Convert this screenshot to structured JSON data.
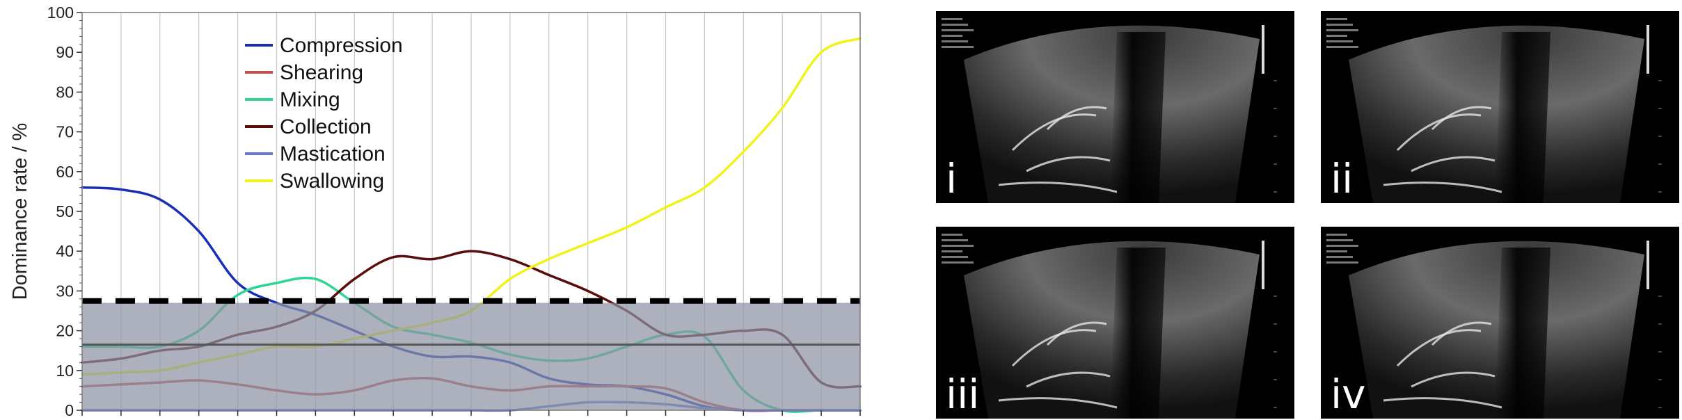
{
  "chart_data": {
    "type": "line",
    "ylabel": "Dominance rate / %",
    "xlabel": "",
    "ylim": [
      0,
      100
    ],
    "yticks": [
      0,
      10,
      20,
      30,
      40,
      50,
      60,
      70,
      80,
      90,
      100
    ],
    "grid": "vertical",
    "legend_position": "top-left",
    "threshold_line": {
      "value": 27.5,
      "style": "dashed",
      "color": "#000000"
    },
    "mean_line": {
      "value": 16.5,
      "color": "#555555"
    },
    "shaded_region": {
      "from": 0,
      "to": 27,
      "color": "#8c93a3"
    },
    "x": [
      0,
      0.05,
      0.1,
      0.15,
      0.2,
      0.25,
      0.3,
      0.35,
      0.4,
      0.45,
      0.5,
      0.55,
      0.6,
      0.65,
      0.7,
      0.75,
      0.8,
      0.85,
      0.9,
      0.95,
      1.0
    ],
    "series": [
      {
        "name": "Compression",
        "color": "#1a2fb5",
        "values": [
          56,
          55.5,
          53,
          45,
          32,
          27,
          24,
          20,
          16,
          13.5,
          13.5,
          12,
          8,
          6.5,
          6,
          4,
          1,
          0,
          0,
          0,
          0
        ]
      },
      {
        "name": "Shearing",
        "color": "#c0504d",
        "values": [
          6,
          6.5,
          7,
          7.5,
          6.5,
          5,
          4,
          5,
          7.5,
          8,
          6,
          5,
          6,
          6,
          6,
          5.5,
          2,
          0,
          0,
          0,
          0
        ]
      },
      {
        "name": "Mixing",
        "color": "#2dd693",
        "values": [
          16,
          16,
          16,
          20,
          29,
          32,
          33,
          27,
          21,
          19,
          17,
          14,
          12.5,
          13,
          16,
          19,
          18.5,
          5,
          0,
          0,
          0
        ]
      },
      {
        "name": "Collection",
        "color": "#5a0d0d",
        "values": [
          12,
          13,
          15,
          16,
          19,
          21,
          25,
          33,
          38.5,
          38,
          40,
          38,
          34,
          30,
          25,
          19,
          19,
          20,
          19,
          7,
          6
        ]
      },
      {
        "name": "Mastication",
        "color": "#6b73d6",
        "values": [
          0,
          0,
          0,
          0,
          0,
          0,
          0,
          0,
          0,
          0,
          0,
          0,
          1,
          2,
          2,
          1.5,
          0.5,
          0,
          0,
          0,
          0
        ]
      },
      {
        "name": "Swallowing",
        "color": "#f2f21a",
        "values": [
          9,
          9.5,
          10,
          12,
          14,
          16,
          16,
          18,
          20,
          22,
          25,
          33,
          38,
          42,
          46,
          51,
          56,
          65,
          76,
          90,
          93.5
        ]
      }
    ]
  },
  "images": [
    {
      "label": "i"
    },
    {
      "label": "ii"
    },
    {
      "label": "iii"
    },
    {
      "label": "iv"
    }
  ]
}
